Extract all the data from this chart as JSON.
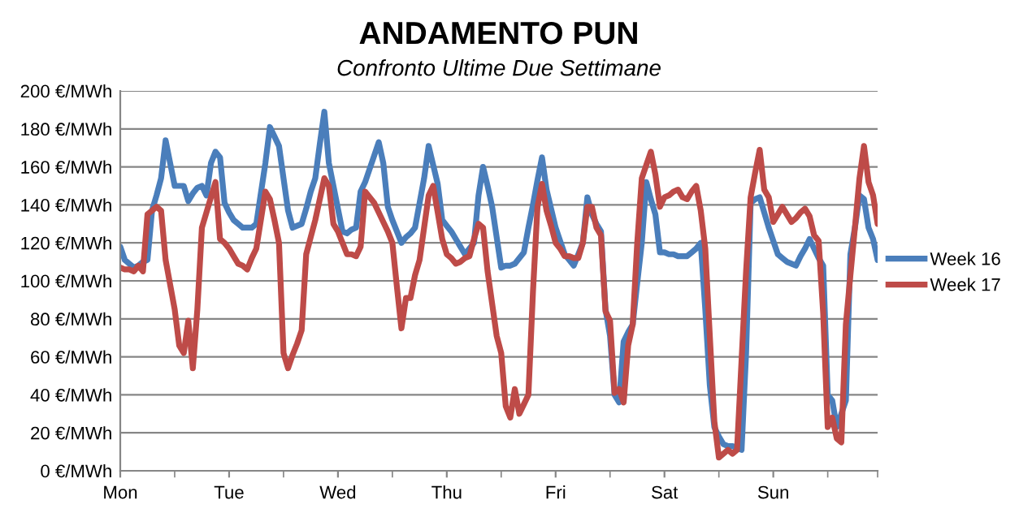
{
  "chart_data": {
    "type": "line",
    "title": "ANDAMENTO PUN",
    "subtitle": "Confronto Ultime Due Settimane",
    "categories": [
      "Mon",
      null,
      null,
      null,
      null,
      null,
      null,
      null,
      null,
      null,
      null,
      null,
      null,
      null,
      null,
      null,
      null,
      null,
      null,
      null,
      null,
      null,
      null,
      null,
      "Tue",
      null,
      null,
      null,
      null,
      null,
      null,
      null,
      null,
      null,
      null,
      null,
      null,
      null,
      null,
      null,
      null,
      null,
      null,
      null,
      null,
      null,
      null,
      null,
      "Wed",
      null,
      null,
      null,
      null,
      null,
      null,
      null,
      null,
      null,
      null,
      null,
      null,
      null,
      null,
      null,
      null,
      null,
      null,
      null,
      null,
      null,
      null,
      null,
      "Thu",
      null,
      null,
      null,
      null,
      null,
      null,
      null,
      null,
      null,
      null,
      null,
      null,
      null,
      null,
      null,
      null,
      null,
      null,
      null,
      null,
      null,
      null,
      null,
      "Fri",
      null,
      null,
      null,
      null,
      null,
      null,
      null,
      null,
      null,
      null,
      null,
      null,
      null,
      null,
      null,
      null,
      null,
      null,
      null,
      null,
      null,
      null,
      null,
      "Sat",
      null,
      null,
      null,
      null,
      null,
      null,
      null,
      null,
      null,
      null,
      null,
      null,
      null,
      null,
      null,
      null,
      null,
      null,
      null,
      null,
      null,
      null,
      null,
      "Sun",
      null,
      null,
      null,
      null,
      null,
      null,
      null,
      null,
      null,
      null,
      null,
      null,
      null,
      null,
      null,
      null,
      null,
      null,
      null,
      null,
      null,
      null,
      null
    ],
    "ylim": [
      0,
      200
    ],
    "yticks": [
      {
        "value": 0,
        "label": "0 €/MWh"
      },
      {
        "value": 20,
        "label": "20 €/MWh"
      },
      {
        "value": 40,
        "label": "40 €/MWh"
      },
      {
        "value": 60,
        "label": "60 €/MWh"
      },
      {
        "value": 80,
        "label": "80 €/MWh"
      },
      {
        "value": 100,
        "label": "100 €/MWh"
      },
      {
        "value": 120,
        "label": "120 €/MWh"
      },
      {
        "value": 140,
        "label": "140 €/MWh"
      },
      {
        "value": 160,
        "label": "160 €/MWh"
      },
      {
        "value": 180,
        "label": "180 €/MWh"
      },
      {
        "value": 200,
        "label": "200 €/MWh"
      }
    ],
    "grid": "y",
    "legend": "right",
    "marker": "none",
    "line_style": "solid",
    "series": [
      {
        "name": "Week 16",
        "color": "#4a7ebb",
        "values": [
          118,
          111,
          109,
          107,
          108,
          110,
          111,
          137,
          145,
          154,
          174,
          162,
          150,
          150,
          150,
          142,
          146,
          149,
          150,
          145,
          162,
          168,
          165,
          141,
          136,
          132,
          130,
          128,
          128,
          128,
          130,
          146,
          162,
          181,
          176,
          171,
          154,
          137,
          128,
          129,
          130,
          138,
          147,
          154,
          172,
          189,
          162,
          150,
          138,
          126,
          125,
          127,
          128,
          147,
          152,
          159,
          166,
          173,
          162,
          139,
          132,
          126,
          120,
          123,
          125,
          128,
          141,
          154,
          171,
          161,
          151,
          132,
          129,
          126,
          122,
          118,
          114,
          117,
          120,
          145,
          160,
          150,
          139,
          123,
          107,
          108,
          108,
          109,
          112,
          115,
          128,
          140,
          153,
          165,
          148,
          138,
          128,
          121,
          114,
          111,
          108,
          114,
          120,
          144,
          135,
          130,
          126,
          85,
          71,
          40,
          36,
          68,
          73,
          77,
          99,
          120,
          152,
          143,
          135,
          115,
          115,
          114,
          114,
          113,
          113,
          113,
          115,
          117,
          120,
          85,
          45,
          23,
          18,
          14,
          13,
          13,
          12,
          11,
          62,
          141,
          143,
          144,
          136,
          128,
          121,
          114,
          112,
          110,
          109,
          108,
          113,
          117,
          122,
          117,
          112,
          108,
          40,
          37,
          23,
          30,
          37,
          114,
          128,
          145,
          143,
          128,
          122,
          111
        ]
      },
      {
        "name": "Week 17",
        "color": "#be4b48",
        "values": [
          107,
          106,
          106,
          105,
          108,
          105,
          135,
          137,
          139,
          137,
          111,
          98,
          85,
          66,
          62,
          79,
          54,
          85,
          128,
          136,
          144,
          152,
          122,
          120,
          117,
          113,
          109,
          108,
          106,
          112,
          117,
          132,
          147,
          143,
          132,
          120,
          62,
          54,
          61,
          67,
          74,
          114,
          123,
          132,
          143,
          154,
          150,
          130,
          126,
          120,
          114,
          114,
          113,
          118,
          147,
          144,
          141,
          136,
          131,
          126,
          120,
          97,
          75,
          91,
          91,
          103,
          111,
          128,
          145,
          150,
          136,
          122,
          114,
          112,
          109,
          110,
          112,
          113,
          122,
          130,
          128,
          105,
          88,
          71,
          62,
          34,
          28,
          43,
          30,
          35,
          40,
          94,
          139,
          151,
          137,
          129,
          120,
          117,
          113,
          113,
          112,
          112,
          120,
          139,
          139,
          128,
          124,
          84,
          79,
          41,
          43,
          36,
          66,
          77,
          120,
          154,
          161,
          168,
          156,
          139,
          144,
          145,
          147,
          148,
          144,
          143,
          147,
          150,
          137,
          117,
          71,
          26,
          7,
          9,
          11,
          9,
          11,
          58,
          105,
          144,
          157,
          169,
          148,
          144,
          131,
          135,
          139,
          135,
          131,
          133,
          136,
          138,
          134,
          124,
          121,
          83,
          23,
          28,
          17,
          15,
          77,
          103,
          128,
          154,
          171,
          152,
          145,
          130
        ]
      }
    ]
  }
}
